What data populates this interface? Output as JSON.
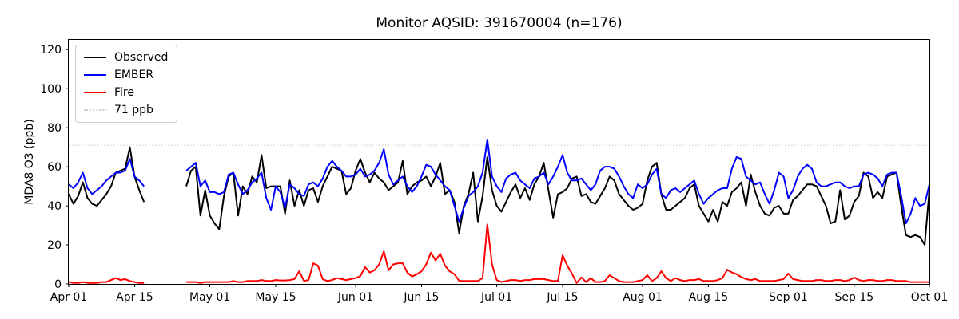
{
  "title": "Monitor AQSID: 391670004 (n=176)",
  "y_axis": {
    "label": "MDA8 O3 (ppb)",
    "tick_values": [
      0,
      20,
      40,
      60,
      80,
      100,
      120
    ],
    "range": [
      0,
      125
    ]
  },
  "x_axis": {
    "ticks": [
      {
        "label": "Apr 01",
        "day": 0
      },
      {
        "label": "Apr 15",
        "day": 14
      },
      {
        "label": "May 01",
        "day": 30
      },
      {
        "label": "May 15",
        "day": 44
      },
      {
        "label": "Jun 01",
        "day": 61
      },
      {
        "label": "Jun 15",
        "day": 75
      },
      {
        "label": "Jul 01",
        "day": 91
      },
      {
        "label": "Jul 15",
        "day": 105
      },
      {
        "label": "Aug 01",
        "day": 122
      },
      {
        "label": "Aug 15",
        "day": 136
      },
      {
        "label": "Sep 01",
        "day": 153
      },
      {
        "label": "Sep 15",
        "day": 167
      },
      {
        "label": "Oct 01",
        "day": 183
      }
    ]
  },
  "legend": {
    "items": [
      {
        "label": "Observed",
        "color": "#000000",
        "style": "solid"
      },
      {
        "label": "EMBER",
        "color": "#0000ff",
        "style": "solid"
      },
      {
        "label": "Fire",
        "color": "#ff0000",
        "style": "solid"
      },
      {
        "label": "71 ppb",
        "color": "#d3d3d3",
        "style": "dotted"
      }
    ]
  },
  "chart_data": {
    "type": "line",
    "title": "Monitor AQSID: 391670004 (n=176)",
    "ylabel": "MDA8 O3 (ppb)",
    "ylim": [
      0,
      125
    ],
    "x_start": "Apr 01",
    "x_end": "Oct 01",
    "x_step": "1 day",
    "n_valid_points": 176,
    "grid": false,
    "legend_position": "upper left",
    "threshold": {
      "label": "71 ppb",
      "value": 71,
      "color": "#d3d3d3",
      "style": "dotted"
    },
    "series": [
      {
        "name": "Observed",
        "color": "#000000",
        "values": [
          46,
          41,
          45,
          52,
          44,
          41,
          40,
          43,
          46,
          50,
          57,
          58,
          59,
          70,
          55,
          48,
          42,
          null,
          null,
          null,
          null,
          null,
          null,
          null,
          null,
          50,
          58,
          60,
          35,
          48,
          35,
          31,
          28,
          45,
          55,
          57,
          35,
          50,
          46,
          55,
          52,
          66,
          49,
          50,
          50,
          50,
          36,
          53,
          40,
          48,
          40,
          48,
          49,
          42,
          50,
          55,
          60,
          59,
          58,
          46,
          49,
          58,
          64,
          57,
          52,
          57,
          54,
          52,
          48,
          50,
          52,
          63,
          46,
          50,
          52,
          53,
          55,
          50,
          55,
          62,
          46,
          48,
          42,
          26,
          40,
          46,
          57,
          32,
          45,
          65,
          48,
          40,
          37,
          42,
          47,
          51,
          44,
          49,
          43,
          51,
          55,
          62,
          48,
          34,
          46,
          47,
          49,
          54,
          55,
          45,
          46,
          42,
          41,
          45,
          49,
          55,
          53,
          46,
          43,
          40,
          38,
          39,
          41,
          53,
          60,
          62,
          46,
          38,
          38,
          40,
          42,
          44,
          49,
          51,
          40,
          36,
          32,
          38,
          32,
          42,
          40,
          47,
          49,
          52,
          40,
          56,
          47,
          40,
          36,
          35,
          39,
          40,
          36,
          36,
          43,
          45,
          48,
          51,
          51,
          50,
          45,
          40,
          31,
          32,
          48,
          33,
          35,
          42,
          45,
          57,
          55,
          44,
          47,
          44,
          55,
          56,
          57,
          40,
          25,
          24,
          25,
          24,
          20,
          48
        ]
      },
      {
        "name": "EMBER",
        "color": "#0000ff",
        "values": [
          51,
          49,
          52,
          57,
          49,
          46,
          48,
          50,
          53,
          55,
          57,
          57,
          58,
          64,
          55,
          53,
          50,
          null,
          null,
          null,
          null,
          null,
          null,
          null,
          null,
          58,
          60,
          62,
          50,
          53,
          47,
          47,
          46,
          47,
          56,
          57,
          51,
          46,
          48,
          52,
          54,
          57,
          44,
          38,
          50,
          47,
          39,
          51,
          49,
          46,
          45,
          51,
          52,
          50,
          54,
          60,
          63,
          60,
          58,
          55,
          55,
          56,
          59,
          55,
          56,
          58,
          62,
          69,
          56,
          51,
          53,
          55,
          50,
          47,
          50,
          55,
          61,
          60,
          56,
          53,
          50,
          48,
          40,
          32,
          39,
          45,
          47,
          50,
          57,
          74,
          55,
          50,
          47,
          54,
          56,
          57,
          53,
          51,
          49,
          54,
          55,
          57,
          51,
          55,
          60,
          66,
          57,
          53,
          53,
          54,
          51,
          48,
          51,
          58,
          60,
          60,
          59,
          55,
          50,
          46,
          44,
          51,
          49,
          51,
          56,
          59,
          46,
          44,
          48,
          49,
          47,
          49,
          51,
          53,
          46,
          41,
          44,
          46,
          48,
          49,
          49,
          59,
          65,
          64,
          55,
          53,
          51,
          52,
          46,
          41,
          48,
          57,
          55,
          44,
          48,
          55,
          59,
          61,
          59,
          52,
          50,
          50,
          51,
          52,
          52,
          50,
          49,
          50,
          50,
          56,
          57,
          56,
          54,
          50,
          56,
          57,
          57,
          45,
          31,
          36,
          44,
          40,
          41,
          51
        ]
      },
      {
        "name": "Fire",
        "color": "#ff0000",
        "values": [
          1,
          0.5,
          0.5,
          1,
          0.5,
          0.5,
          0.5,
          1,
          1,
          2,
          3,
          2,
          2.5,
          1.5,
          1,
          0.5,
          0.5,
          null,
          null,
          null,
          null,
          null,
          null,
          null,
          null,
          1,
          1,
          1,
          0.5,
          1,
          1,
          1,
          1,
          1,
          1,
          1.5,
          1,
          1,
          1.5,
          1.5,
          1.5,
          2,
          1.5,
          1.5,
          2,
          1.8,
          1.8,
          2,
          2.5,
          6.5,
          1.6,
          2,
          10.6,
          9.4,
          2.4,
          1.5,
          2,
          3,
          2.5,
          2,
          2.5,
          3,
          4,
          8.6,
          5.9,
          7,
          10,
          16.7,
          7,
          10,
          10.6,
          10.6,
          5.8,
          3.8,
          5,
          6.5,
          10,
          16,
          12,
          15.5,
          9.4,
          6.5,
          5,
          1.6,
          1.5,
          1.5,
          1.5,
          1.5,
          3,
          30.5,
          10,
          2,
          1,
          1.5,
          2,
          2,
          1.5,
          2,
          2,
          2.5,
          2.5,
          2.5,
          2,
          1.5,
          1.5,
          14.7,
          9.4,
          5.3,
          0.5,
          3.3,
          1,
          3,
          1,
          1,
          1.5,
          4.5,
          3,
          1.5,
          1,
          1,
          1,
          1.5,
          2,
          4.5,
          1.5,
          3,
          6.5,
          3,
          1.5,
          3,
          2,
          1.5,
          2,
          2,
          2.5,
          1.5,
          1.5,
          1.5,
          2,
          3,
          7.3,
          5.9,
          5,
          3.5,
          2.5,
          2,
          2.5,
          1.5,
          1.5,
          1.5,
          1.5,
          2,
          2.5,
          5.3,
          2.5,
          2,
          1.5,
          1.5,
          1.5,
          2,
          2,
          1.5,
          1.5,
          2,
          2,
          1.5,
          2,
          3.3,
          2,
          1.5,
          2,
          2,
          1.5,
          1.5,
          2,
          2,
          1.5,
          1.5,
          1.5,
          1,
          1,
          1,
          1,
          1
        ]
      }
    ]
  }
}
